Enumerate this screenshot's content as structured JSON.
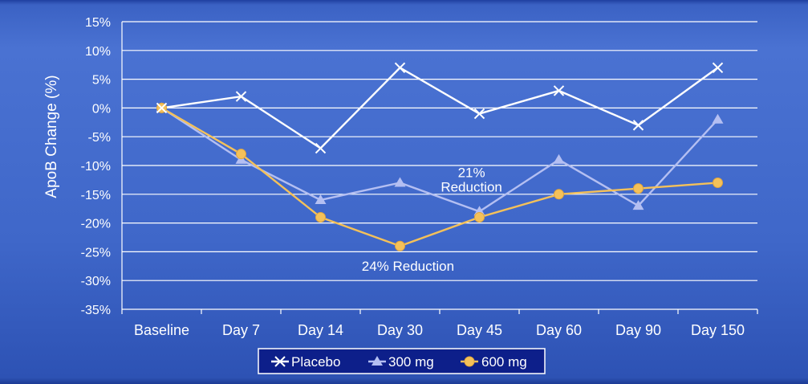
{
  "chart_data": {
    "type": "line",
    "ylabel": "ApoB Change (%)",
    "ylim": [
      -35,
      15
    ],
    "yticks": [
      15,
      10,
      5,
      0,
      -5,
      -10,
      -15,
      -20,
      -25,
      -30,
      -35
    ],
    "ytick_labels": [
      "15%",
      "10%",
      "5%",
      "0%",
      "-5%",
      "-10%",
      "-15%",
      "-20%",
      "-25%",
      "-30%",
      "-35%"
    ],
    "grid": true,
    "categories": [
      "Baseline",
      "Day 7",
      "Day 14",
      "Day 30",
      "Day 45",
      "Day 60",
      "Day 90",
      "Day 150"
    ],
    "series": [
      {
        "name": "Placebo",
        "marker": "x",
        "color": "#ffffff",
        "values": [
          0,
          2,
          -7,
          7,
          -1,
          3,
          -3,
          7
        ]
      },
      {
        "name": "300 mg",
        "marker": "triangle",
        "color": "#b4bff2",
        "values": [
          0,
          -9,
          -16,
          -13,
          -18,
          -9,
          -17,
          -2
        ]
      },
      {
        "name": "600 mg",
        "marker": "circle",
        "color": "#f4c15a",
        "values": [
          0,
          -8,
          -19,
          -24,
          -19,
          -15,
          -14,
          -13
        ]
      }
    ],
    "annotations": [
      {
        "lines": [
          "21%",
          "Reduction"
        ],
        "x": 3.9,
        "y": -12
      },
      {
        "lines": [
          "24% Reduction"
        ],
        "x": 3.1,
        "y": -28.3
      }
    ],
    "legend_position": "bottom-center"
  }
}
